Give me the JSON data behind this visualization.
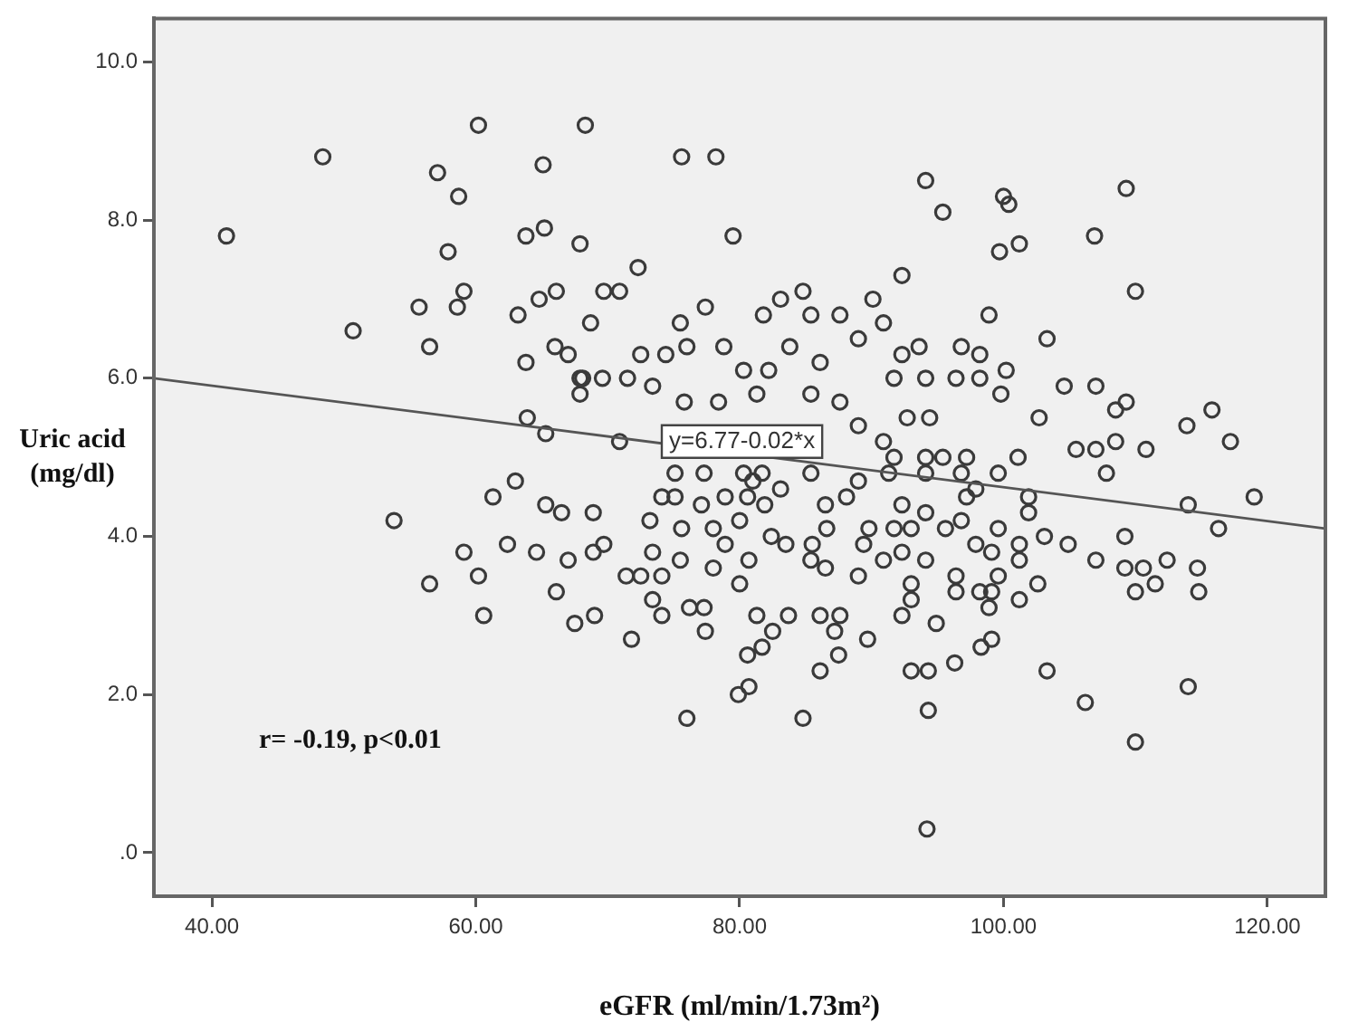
{
  "chart_data": {
    "type": "scatter",
    "xlabel": "eGFR (ml/min/1.73m²)",
    "ylabel": "Uric acid (mg/dl)",
    "grid": false,
    "xlim": [
      35.6,
      124.4
    ],
    "ylim": [
      -0.55,
      10.55
    ],
    "xticks": [
      {
        "value": 40,
        "label": "40.00"
      },
      {
        "value": 60,
        "label": "60.00"
      },
      {
        "value": 80,
        "label": "80.00"
      },
      {
        "value": 100,
        "label": "100.00"
      },
      {
        "value": 120,
        "label": "120.00"
      }
    ],
    "yticks": [
      {
        "value": 0,
        "label": ".0"
      },
      {
        "value": 2,
        "label": "2.0"
      },
      {
        "value": 4,
        "label": "4.0"
      },
      {
        "value": 6,
        "label": "6.0"
      },
      {
        "value": 8,
        "label": "8.0"
      },
      {
        "value": 10,
        "label": "10.0"
      }
    ],
    "series": [
      {
        "color": "#3a3a3a",
        "marker": "circle",
        "x": [
          41.1,
          48.4,
          50.7,
          55.7,
          56.5,
          57.1,
          57.9,
          58.7,
          59.1,
          58.6,
          60.2,
          63.2,
          63.8,
          65.2,
          65.1,
          67.9,
          68.3,
          64.8,
          66.1,
          63.8,
          66.0,
          67.0,
          67.9,
          67.9,
          63.9,
          65.3,
          68.7,
          53.8,
          56.5,
          60.6,
          60.2,
          59.1,
          61.3,
          63.0,
          62.4,
          64.6,
          65.3,
          66.5,
          67.0,
          66.1,
          67.5,
          68.9,
          68.9,
          75.6,
          78.2,
          79.5,
          72.3,
          69.7,
          70.9,
          94.1,
          95.4,
          100.0,
          100.4,
          109.3,
          99.7,
          101.2,
          106.9,
          92.3,
          110.0,
          98.9,
          103.3,
          84.8,
          83.1,
          81.8,
          77.4,
          75.5,
          90.1,
          90.9,
          85.4,
          87.6,
          72.5,
          74.4,
          76.0,
          78.8,
          83.8,
          86.1,
          89.0,
          68.1,
          69.6,
          71.5,
          73.4,
          75.8,
          78.4,
          80.3,
          82.2,
          81.3,
          85.4,
          87.6,
          92.3,
          93.6,
          91.7,
          94.1,
          96.8,
          98.2,
          100.2,
          96.4,
          98.2,
          99.8,
          104.6,
          107.0,
          108.5,
          109.3,
          102.7,
          113.9,
          115.8,
          117.2,
          110.8,
          108.5,
          92.7,
          94.4,
          89.0,
          90.9,
          70.9,
          69.0,
          71.8,
          69.7,
          71.4,
          72.5,
          74.1,
          73.4,
          74.1,
          76.2,
          77.3,
          77.4,
          75.5,
          73.4,
          73.2,
          74.1,
          75.6,
          77.1,
          78.0,
          78.9,
          78.0,
          80.0,
          80.7,
          80.0,
          81.9,
          82.4,
          83.5,
          81.3,
          82.5,
          81.7,
          80.6,
          80.7,
          79.9,
          76.0,
          84.8,
          83.7,
          86.1,
          86.1,
          87.2,
          87.6,
          87.5,
          89.7,
          86.5,
          85.4,
          85.5,
          86.6,
          86.5,
          88.1,
          89.0,
          89.4,
          89.8,
          89.0,
          90.9,
          92.3,
          93.0,
          93.0,
          92.3,
          91.7,
          93.0,
          92.3,
          94.1,
          94.1,
          94.1,
          91.3,
          93.0,
          94.3,
          94.3,
          94.2,
          94.9,
          96.3,
          98.3,
          99.1,
          95.6,
          96.8,
          97.2,
          97.9,
          96.8,
          99.6,
          99.6,
          97.9,
          99.1,
          101.2,
          101.2,
          96.4,
          96.4,
          98.2,
          99.1,
          98.9,
          101.2,
          99.6,
          102.6,
          103.1,
          101.9,
          101.9,
          104.9,
          107.0,
          109.2,
          109.2,
          110.6,
          112.4,
          114.7,
          111.5,
          110.0,
          114.8,
          114.0,
          116.3,
          119.0,
          107.8,
          103.3,
          106.2,
          114.0,
          110.0,
          105.5,
          107.0,
          101.1,
          97.2,
          95.4,
          94.1,
          91.7,
          85.4,
          81.7,
          80.3,
          77.3,
          75.1,
          75.1,
          80.6,
          81.0,
          78.9,
          83.1
        ],
        "values": [
          7.8,
          8.8,
          6.6,
          6.9,
          6.4,
          8.6,
          7.6,
          8.3,
          7.1,
          6.9,
          9.2,
          6.8,
          7.8,
          7.9,
          8.7,
          7.7,
          9.2,
          7.0,
          7.1,
          6.2,
          6.4,
          6.3,
          6.0,
          5.8,
          5.5,
          5.3,
          6.7,
          4.2,
          3.4,
          3.0,
          3.5,
          3.8,
          4.5,
          4.7,
          3.9,
          3.8,
          4.4,
          4.3,
          3.7,
          3.3,
          2.9,
          4.3,
          3.8,
          8.8,
          8.8,
          7.8,
          7.4,
          7.1,
          7.1,
          8.5,
          8.1,
          8.3,
          8.2,
          8.4,
          7.6,
          7.7,
          7.8,
          7.3,
          7.1,
          6.8,
          6.5,
          7.1,
          7.0,
          6.8,
          6.9,
          6.7,
          7.0,
          6.7,
          6.8,
          6.8,
          6.3,
          6.3,
          6.4,
          6.4,
          6.4,
          6.2,
          6.5,
          6.0,
          6.0,
          6.0,
          5.9,
          5.7,
          5.7,
          6.1,
          6.1,
          5.8,
          5.8,
          5.7,
          6.3,
          6.4,
          6.0,
          6.0,
          6.4,
          6.3,
          6.1,
          6.0,
          6.0,
          5.8,
          5.9,
          5.9,
          5.6,
          5.7,
          5.5,
          5.4,
          5.6,
          5.2,
          5.1,
          5.2,
          5.5,
          5.5,
          5.4,
          5.2,
          5.2,
          3.0,
          2.7,
          3.9,
          3.5,
          3.5,
          3.5,
          3.2,
          3.0,
          3.1,
          3.1,
          2.8,
          3.7,
          3.8,
          4.2,
          4.5,
          4.1,
          4.4,
          4.1,
          3.9,
          3.6,
          3.4,
          3.7,
          4.2,
          4.4,
          4.0,
          3.9,
          3.0,
          2.8,
          2.6,
          2.5,
          2.1,
          2.0,
          1.7,
          1.7,
          3.0,
          2.3,
          3.0,
          2.8,
          3.0,
          2.5,
          2.7,
          3.6,
          3.7,
          3.9,
          4.1,
          4.4,
          4.5,
          3.5,
          3.9,
          4.1,
          4.7,
          3.7,
          3.0,
          3.2,
          3.4,
          3.8,
          4.1,
          4.1,
          4.4,
          3.7,
          4.3,
          4.8,
          4.8,
          2.3,
          2.3,
          1.8,
          0.3,
          2.9,
          2.4,
          2.6,
          2.7,
          4.1,
          4.2,
          4.5,
          4.6,
          4.8,
          4.8,
          4.1,
          3.9,
          3.8,
          3.9,
          3.7,
          3.5,
          3.3,
          3.3,
          3.3,
          3.1,
          3.2,
          3.5,
          3.4,
          4.0,
          4.5,
          4.3,
          3.9,
          3.7,
          4.0,
          3.6,
          3.6,
          3.7,
          3.6,
          3.4,
          3.3,
          3.3,
          4.4,
          4.1,
          4.5,
          4.8,
          2.3,
          1.9,
          2.1,
          1.4,
          5.1,
          5.1,
          5.0,
          5.0,
          5.0,
          5.0,
          5.0,
          4.8,
          4.8,
          4.8,
          4.8,
          4.8,
          4.5,
          4.5,
          4.7,
          4.5,
          4.6
        ]
      },
      {
        "type": "line",
        "marker": "none",
        "color": "#555555",
        "x": [
          35.6,
          124.4
        ],
        "values": [
          6.0,
          4.1
        ]
      }
    ],
    "annotations": [
      "y=6.77-0.02*x",
      "r= -0.19, p<0.01"
    ]
  }
}
